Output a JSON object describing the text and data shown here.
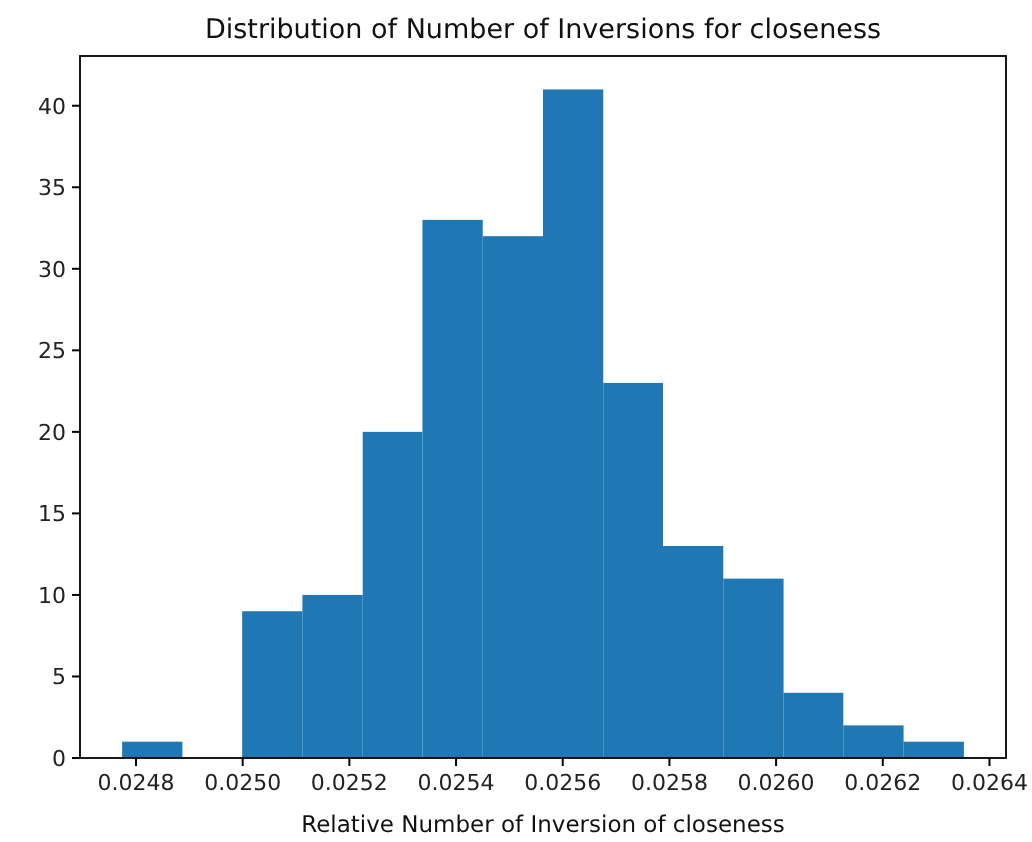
{
  "chart_data": {
    "type": "histogram",
    "title": "Distribution of Number of Inversions for closeness",
    "xlabel": "Relative Number of Inversion of closeness",
    "bins": [
      0.024774,
      0.024887,
      0.024999,
      0.025112,
      0.025225,
      0.025337,
      0.02545,
      0.025563,
      0.025676,
      0.025788,
      0.025901,
      0.026014,
      0.026126,
      0.026239,
      0.026352
    ],
    "values": [
      1,
      0,
      9,
      10,
      20,
      33,
      32,
      41,
      23,
      13,
      11,
      4,
      2,
      1
    ],
    "color": "#1f77b4",
    "xlim": [
      0.024695,
      0.026431
    ],
    "xticks": [
      0.0248,
      {
        "value": 0.025,
        "label": "0.0250"
      },
      0.0252,
      0.0254,
      0.0256,
      0.0258,
      {
        "value": 0.026,
        "label": "0.0260"
      },
      0.0262,
      0.0264
    ],
    "ylim": [
      0,
      43.05
    ],
    "yticks": [
      0,
      5,
      10,
      15,
      20,
      25,
      30,
      35,
      40
    ],
    "grid": false
  }
}
